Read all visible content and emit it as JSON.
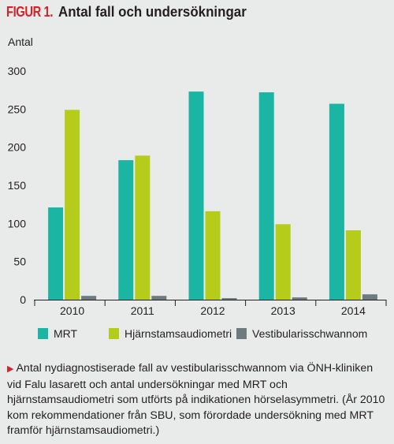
{
  "figure": {
    "label": "FIGUR 1.",
    "title": "Antal fall och undersökningar"
  },
  "caption": "Antal nydiagnostiserade fall av vestibularisschwannom via ÖNH-kliniken vid Falu lasarett och antal undersökningar med MRT och hjärnstamsaudiometri som utförts på indikationen hörselasymmetri. (År 2010 kom rekommendationer från SBU, som förordade undersökning med MRT framför hjärnstamsaudiometri.)",
  "colors": {
    "mrt": "#1ab5a3",
    "abr": "#b5cc1a",
    "vs": "#6d7a80",
    "accent": "#d2232a"
  },
  "chart_data": {
    "type": "bar",
    "title": "Antal fall och undersökningar",
    "ylabel": "Antal",
    "xlabel": "",
    "categories": [
      "2010",
      "2011",
      "2012",
      "2013",
      "2014"
    ],
    "series": [
      {
        "name": "MRT",
        "color": "#1ab5a3",
        "values": [
          121,
          183,
          273,
          272,
          257
        ]
      },
      {
        "name": "Hjärnstamsaudiometri",
        "color": "#b5cc1a",
        "values": [
          249,
          189,
          116,
          99,
          91
        ]
      },
      {
        "name": "Vestibularisschwannom",
        "color": "#6d7a80",
        "values": [
          5,
          5,
          2,
          3,
          7
        ]
      }
    ],
    "ylim": [
      0,
      300
    ],
    "yticks": [
      0,
      50,
      100,
      150,
      200,
      250,
      300
    ],
    "grid": false,
    "legend": "bottom"
  }
}
